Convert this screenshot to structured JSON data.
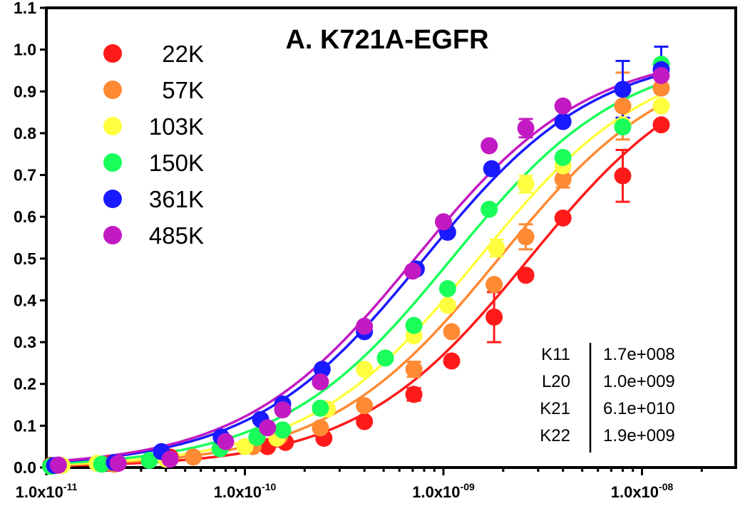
{
  "chart_data": {
    "type": "scatter",
    "title": "A.  K721A-EGFR",
    "xlabel": "",
    "ylabel": "",
    "xscale": "log",
    "xlim": [
      1e-11,
      3e-08
    ],
    "ylim": [
      0,
      1.1
    ],
    "grid": false,
    "legend_position": "top-left",
    "y_ticks": [
      "0.0",
      "0.1",
      "0.2",
      "0.3",
      "0.4",
      "0.5",
      "0.6",
      "0.7",
      "0.8",
      "0.9",
      "1.0",
      "1.1"
    ],
    "x_ticks": [
      {
        "value": 1e-11,
        "base": "1.0x10",
        "exp": "-11"
      },
      {
        "value": 1e-10,
        "base": "1.0x10",
        "exp": "-10"
      },
      {
        "value": 1e-09,
        "base": "1.0x10",
        "exp": "-09"
      },
      {
        "value": 1e-08,
        "base": "1.0x10",
        "exp": "-08"
      }
    ],
    "series": [
      {
        "name": "22K",
        "color": "#ff1a1a",
        "ec50": 2.7e-09,
        "hill": 1.0,
        "points": [
          {
            "x": 1.05e-11,
            "y": 0.005
          },
          {
            "x": 2.1e-11,
            "y": 0.01
          },
          {
            "x": 4.2e-11,
            "y": 0.025
          },
          {
            "x": 1.3e-10,
            "y": 0.05
          },
          {
            "x": 1.6e-10,
            "y": 0.06
          },
          {
            "x": 2.5e-10,
            "y": 0.07
          },
          {
            "x": 4e-10,
            "y": 0.11
          },
          {
            "x": 7.1e-10,
            "y": 0.175,
            "err": 0.015
          },
          {
            "x": 1.1e-09,
            "y": 0.255
          },
          {
            "x": 1.8e-09,
            "y": 0.36,
            "err": 0.06
          },
          {
            "x": 2.6e-09,
            "y": 0.46
          },
          {
            "x": 4e-09,
            "y": 0.597
          },
          {
            "x": 8e-09,
            "y": 0.698,
            "err": 0.062
          },
          {
            "x": 1.25e-08,
            "y": 0.82
          }
        ]
      },
      {
        "name": "57K",
        "color": "#ff8a33",
        "ec50": 1.9e-09,
        "hill": 1.0,
        "points": [
          {
            "x": 1.15e-11,
            "y": 0.005
          },
          {
            "x": 2.2e-11,
            "y": 0.008
          },
          {
            "x": 5.5e-11,
            "y": 0.025
          },
          {
            "x": 1.1e-10,
            "y": 0.05
          },
          {
            "x": 1.5e-10,
            "y": 0.075
          },
          {
            "x": 2.4e-10,
            "y": 0.095
          },
          {
            "x": 4e-10,
            "y": 0.148
          },
          {
            "x": 7.1e-10,
            "y": 0.235,
            "err": 0.018
          },
          {
            "x": 1.1e-09,
            "y": 0.325
          },
          {
            "x": 1.8e-09,
            "y": 0.438
          },
          {
            "x": 2.6e-09,
            "y": 0.552,
            "err": 0.03
          },
          {
            "x": 4e-09,
            "y": 0.69,
            "err": 0.02
          },
          {
            "x": 8e-09,
            "y": 0.865,
            "err": 0.08
          },
          {
            "x": 1.25e-08,
            "y": 0.908
          }
        ]
      },
      {
        "name": "103K",
        "color": "#ffff40",
        "ec50": 1.5e-09,
        "hill": 1.0,
        "points": [
          {
            "x": 1.2e-11,
            "y": 0.005
          },
          {
            "x": 1.8e-11,
            "y": 0.01
          },
          {
            "x": 4e-11,
            "y": 0.02
          },
          {
            "x": 1e-10,
            "y": 0.05
          },
          {
            "x": 1.45e-10,
            "y": 0.07
          },
          {
            "x": 2.6e-10,
            "y": 0.14
          },
          {
            "x": 4e-10,
            "y": 0.235
          },
          {
            "x": 7.1e-10,
            "y": 0.315
          },
          {
            "x": 1.05e-09,
            "y": 0.388
          },
          {
            "x": 1.85e-09,
            "y": 0.525,
            "err": 0.02
          },
          {
            "x": 2.6e-09,
            "y": 0.678,
            "err": 0.02
          },
          {
            "x": 4e-09,
            "y": 0.722
          },
          {
            "x": 8e-09,
            "y": 0.82
          },
          {
            "x": 1.25e-08,
            "y": 0.865
          }
        ]
      },
      {
        "name": "150K",
        "color": "#1aff5a",
        "ec50": 1.1e-09,
        "hill": 1.0,
        "points": [
          {
            "x": 1.05e-11,
            "y": 0.003
          },
          {
            "x": 1.9e-11,
            "y": 0.008
          },
          {
            "x": 3.3e-11,
            "y": 0.017
          },
          {
            "x": 7.5e-11,
            "y": 0.045
          },
          {
            "x": 1.15e-10,
            "y": 0.072
          },
          {
            "x": 1.55e-10,
            "y": 0.09
          },
          {
            "x": 2.4e-10,
            "y": 0.142
          },
          {
            "x": 5.1e-10,
            "y": 0.262
          },
          {
            "x": 7.1e-10,
            "y": 0.34
          },
          {
            "x": 1.05e-09,
            "y": 0.428
          },
          {
            "x": 1.7e-09,
            "y": 0.618
          },
          {
            "x": 4e-09,
            "y": 0.742
          },
          {
            "x": 8e-09,
            "y": 0.815
          },
          {
            "x": 1.25e-08,
            "y": 0.965
          }
        ]
      },
      {
        "name": "361K",
        "color": "#1a1aff",
        "ec50": 8e-10,
        "hill": 1.0,
        "points": [
          {
            "x": 1.1e-11,
            "y": 0.005
          },
          {
            "x": 2.2e-11,
            "y": 0.012
          },
          {
            "x": 3.8e-11,
            "y": 0.038
          },
          {
            "x": 7.6e-11,
            "y": 0.073
          },
          {
            "x": 1.2e-10,
            "y": 0.115
          },
          {
            "x": 1.55e-10,
            "y": 0.152
          },
          {
            "x": 2.45e-10,
            "y": 0.235
          },
          {
            "x": 4e-10,
            "y": 0.325
          },
          {
            "x": 7.3e-10,
            "y": 0.475
          },
          {
            "x": 1.05e-09,
            "y": 0.563
          },
          {
            "x": 1.75e-09,
            "y": 0.715
          },
          {
            "x": 4e-09,
            "y": 0.828
          },
          {
            "x": 8e-09,
            "y": 0.905,
            "err": 0.068
          },
          {
            "x": 1.25e-08,
            "y": 0.952,
            "err": 0.055
          }
        ]
      },
      {
        "name": "485K",
        "color": "#c21ac2",
        "ec50": 7.2e-10,
        "hill": 1.0,
        "points": [
          {
            "x": 1.15e-11,
            "y": 0.006
          },
          {
            "x": 2.3e-11,
            "y": 0.01
          },
          {
            "x": 4.2e-11,
            "y": 0.02
          },
          {
            "x": 8e-11,
            "y": 0.062
          },
          {
            "x": 1.3e-10,
            "y": 0.095
          },
          {
            "x": 1.55e-10,
            "y": 0.138
          },
          {
            "x": 2.4e-10,
            "y": 0.205
          },
          {
            "x": 4e-10,
            "y": 0.338
          },
          {
            "x": 7e-10,
            "y": 0.47
          },
          {
            "x": 1e-09,
            "y": 0.588
          },
          {
            "x": 1.7e-09,
            "y": 0.77
          },
          {
            "x": 2.6e-09,
            "y": 0.812,
            "err": 0.022
          },
          {
            "x": 4e-09,
            "y": 0.865
          },
          {
            "x": 1.25e-08,
            "y": 0.938
          }
        ]
      }
    ],
    "parameters": [
      {
        "name": "K11",
        "value": "1.7e+008"
      },
      {
        "name": "L20",
        "value": "1.0e+009"
      },
      {
        "name": "K21",
        "value": "6.1e+010"
      },
      {
        "name": "K22",
        "value": "1.9e+009"
      }
    ]
  }
}
